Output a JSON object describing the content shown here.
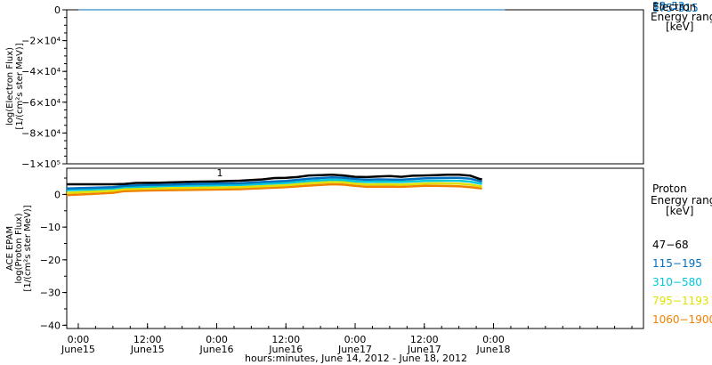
{
  "chart_data": [
    {
      "type": "line",
      "panel": "electron",
      "ylabel_lines": [
        "log(Electron Flux)",
        "[1/(cm²s ster MeV)]"
      ],
      "yticks": [
        "0",
        "−2×10⁴",
        "−4×10⁴",
        "−6×10⁴",
        "−8×10⁴",
        "−1×10⁵"
      ],
      "ylim": [
        -100000,
        0
      ],
      "legend_title": [
        "Electron",
        "Energy range",
        "[keV]"
      ],
      "legend_overlap_labels": [
        "38–53",
        "175–315"
      ],
      "series": [
        {
          "values": [
            [
              0,
              0
            ],
            [
              74,
              0
            ]
          ],
          "color": "#0070c0"
        }
      ]
    },
    {
      "type": "line",
      "panel": "proton",
      "ylabel_lines": [
        "ACE EPAM",
        "log(Proton Flux)",
        "[1/(cm²s ster MeV)]"
      ],
      "yticks": [
        "0",
        "−10",
        "−20",
        "−30",
        "−40"
      ],
      "ylim": [
        -41,
        8
      ],
      "xlabel": "hours:minutes, June 14, 2012 - June 18, 2012",
      "xlim": [
        -2,
        98
      ],
      "xticks": [
        {
          "hour": 0,
          "time": "0:00",
          "day": "June15"
        },
        {
          "hour": 12,
          "time": "12:00",
          "day": "June15"
        },
        {
          "hour": 24,
          "time": "0:00",
          "day": "June16"
        },
        {
          "hour": 36,
          "time": "12:00",
          "day": "June16"
        },
        {
          "hour": 48,
          "time": "0:00",
          "day": "June17"
        },
        {
          "hour": 60,
          "time": "12:00",
          "day": "June17"
        },
        {
          "hour": 72,
          "time": "0:00",
          "day": "June18"
        }
      ],
      "annotation": "1",
      "legend_title": [
        "Proton",
        "Energy range",
        "[keV]"
      ],
      "series": [
        {
          "name": "47-68",
          "color": "#000000",
          "values": [
            [
              -2,
              3.1
            ],
            [
              6,
              3.1
            ],
            [
              8,
              3.2
            ],
            [
              10,
              3.5
            ],
            [
              14,
              3.6
            ],
            [
              20,
              3.9
            ],
            [
              24,
              4.0
            ],
            [
              28,
              4.2
            ],
            [
              32,
              4.6
            ],
            [
              34,
              5.0
            ],
            [
              36,
              5.1
            ],
            [
              38,
              5.3
            ],
            [
              40,
              5.8
            ],
            [
              42,
              5.9
            ],
            [
              44,
              6.0
            ],
            [
              46,
              5.8
            ],
            [
              48,
              5.4
            ],
            [
              50,
              5.3
            ],
            [
              52,
              5.5
            ],
            [
              54,
              5.6
            ],
            [
              56,
              5.4
            ],
            [
              58,
              5.7
            ],
            [
              60,
              5.8
            ],
            [
              62,
              5.9
            ],
            [
              64,
              6.0
            ],
            [
              66,
              6.0
            ],
            [
              68,
              5.7
            ],
            [
              69.5,
              4.8
            ],
            [
              70,
              4.6
            ]
          ]
        },
        {
          "name": "115-195",
          "color": "#0070c0",
          "values": [
            [
              -2,
              1.8
            ],
            [
              2,
              2.0
            ],
            [
              6,
              2.2
            ],
            [
              8,
              2.6
            ],
            [
              12,
              2.9
            ],
            [
              16,
              3.0
            ],
            [
              20,
              3.2
            ],
            [
              24,
              3.3
            ],
            [
              28,
              3.4
            ],
            [
              32,
              3.8
            ],
            [
              36,
              4.1
            ],
            [
              40,
              4.8
            ],
            [
              44,
              5.2
            ],
            [
              46,
              5.1
            ],
            [
              48,
              4.7
            ],
            [
              50,
              4.5
            ],
            [
              52,
              4.6
            ],
            [
              56,
              4.5
            ],
            [
              60,
              4.9
            ],
            [
              62,
              5.0
            ],
            [
              66,
              5.1
            ],
            [
              68,
              4.8
            ],
            [
              70,
              3.9
            ]
          ]
        },
        {
          "name": "310-580",
          "color": "#00c8d8",
          "values": [
            [
              -2,
              1.3
            ],
            [
              2,
              1.5
            ],
            [
              6,
              1.8
            ],
            [
              8,
              2.2
            ],
            [
              12,
              2.4
            ],
            [
              16,
              2.6
            ],
            [
              20,
              2.7
            ],
            [
              24,
              2.8
            ],
            [
              28,
              2.9
            ],
            [
              32,
              3.2
            ],
            [
              36,
              3.5
            ],
            [
              40,
              4.1
            ],
            [
              44,
              4.5
            ],
            [
              46,
              4.4
            ],
            [
              48,
              4.0
            ],
            [
              50,
              3.8
            ],
            [
              52,
              3.9
            ],
            [
              56,
              3.8
            ],
            [
              60,
              4.1
            ],
            [
              62,
              4.2
            ],
            [
              66,
              4.2
            ],
            [
              68,
              3.9
            ],
            [
              70,
              3.2
            ]
          ]
        },
        {
          "name": "795-1193",
          "color": "#e0e000",
          "values": [
            [
              -2,
              0.5
            ],
            [
              2,
              0.8
            ],
            [
              6,
              1.1
            ],
            [
              8,
              1.6
            ],
            [
              12,
              1.8
            ],
            [
              16,
              1.9
            ],
            [
              20,
              2.0
            ],
            [
              24,
              2.1
            ],
            [
              28,
              2.2
            ],
            [
              32,
              2.5
            ],
            [
              36,
              2.8
            ],
            [
              40,
              3.4
            ],
            [
              44,
              3.8
            ],
            [
              46,
              3.7
            ],
            [
              48,
              3.3
            ],
            [
              50,
              3.0
            ],
            [
              52,
              3.1
            ],
            [
              56,
              3.0
            ],
            [
              60,
              3.3
            ],
            [
              62,
              3.4
            ],
            [
              66,
              3.3
            ],
            [
              68,
              3.0
            ],
            [
              70,
              2.4
            ]
          ]
        },
        {
          "name": "1060-1900",
          "color": "#f08000",
          "values": [
            [
              -2,
              -0.2
            ],
            [
              2,
              0.1
            ],
            [
              6,
              0.5
            ],
            [
              8,
              1.0
            ],
            [
              12,
              1.2
            ],
            [
              16,
              1.3
            ],
            [
              20,
              1.4
            ],
            [
              24,
              1.5
            ],
            [
              28,
              1.6
            ],
            [
              32,
              1.9
            ],
            [
              36,
              2.2
            ],
            [
              40,
              2.7
            ],
            [
              44,
              3.1
            ],
            [
              46,
              3.0
            ],
            [
              48,
              2.6
            ],
            [
              50,
              2.3
            ],
            [
              52,
              2.4
            ],
            [
              56,
              2.3
            ],
            [
              60,
              2.6
            ],
            [
              62,
              2.6
            ],
            [
              66,
              2.5
            ],
            [
              68,
              2.2
            ],
            [
              70,
              1.8
            ]
          ]
        }
      ]
    }
  ]
}
